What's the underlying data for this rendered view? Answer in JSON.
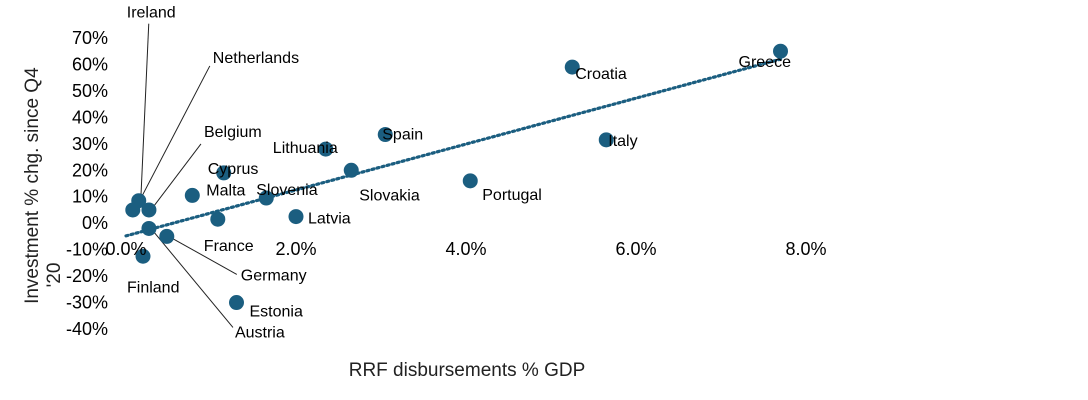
{
  "chart_data": {
    "type": "scatter",
    "xlabel": "RRF disbursements % GDP",
    "ylabel": "Investment % chg. since Q4 '20",
    "xlim": [
      0,
      8
    ],
    "ylim": [
      -40,
      70
    ],
    "xticks": [
      "0.0%",
      "2.0%",
      "4.0%",
      "6.0%",
      "8.0%"
    ],
    "yticks": [
      "70%",
      "60%",
      "50%",
      "40%",
      "30%",
      "20%",
      "10%",
      "0%",
      "-10%",
      "-20%",
      "-30%",
      "-40%"
    ],
    "trendline": {
      "style": "dotted",
      "x": [
        0,
        7.7
      ],
      "y": [
        -4.8,
        62
      ]
    },
    "point_color": "#1b5e80",
    "points": [
      {
        "name": "Ireland",
        "x": 0.15,
        "y": 8.5
      },
      {
        "name": "Netherlands",
        "x": 0.08,
        "y": 5.0
      },
      {
        "name": "Belgium",
        "x": 0.27,
        "y": 5.0
      },
      {
        "name": "Cyprus",
        "x": 1.15,
        "y": 19.0
      },
      {
        "name": "Malta",
        "x": 0.78,
        "y": 10.5
      },
      {
        "name": "Slovenia",
        "x": 1.65,
        "y": 9.5
      },
      {
        "name": "France",
        "x": 1.08,
        "y": 1.5
      },
      {
        "name": "Lithuania",
        "x": 2.35,
        "y": 28.0
      },
      {
        "name": "Spain",
        "x": 3.05,
        "y": 33.5
      },
      {
        "name": "Slovakia",
        "x": 2.65,
        "y": 20.0
      },
      {
        "name": "Latvia",
        "x": 2.0,
        "y": 2.5
      },
      {
        "name": "Portugal",
        "x": 4.05,
        "y": 16.0
      },
      {
        "name": "Croatia",
        "x": 5.25,
        "y": 59.0
      },
      {
        "name": "Italy",
        "x": 5.65,
        "y": 31.5
      },
      {
        "name": "Greece",
        "x": 7.7,
        "y": 65.0
      },
      {
        "name": "Germany",
        "x": 0.48,
        "y": -5.0
      },
      {
        "name": "Austria",
        "x": 0.27,
        "y": -2.0
      },
      {
        "name": "Finland",
        "x": 0.2,
        "y": -12.5
      },
      {
        "name": "Estonia",
        "x": 1.3,
        "y": -30.0
      }
    ]
  }
}
